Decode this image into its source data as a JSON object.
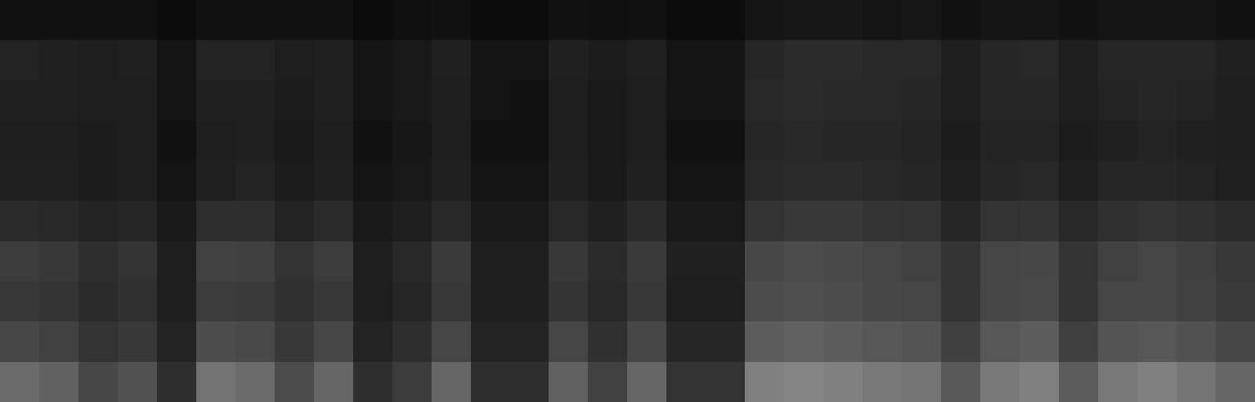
{
  "chart_data": {
    "type": "heatmap",
    "tick_labels": false,
    "value_range": [
      0,
      1
    ],
    "cells": [
      [
        0.07,
        0.07,
        0.07,
        0.07,
        0.05,
        0.07,
        0.07,
        0.07,
        0.07,
        0.05,
        0.06,
        0.07,
        0.05,
        0.05,
        0.07,
        0.06,
        0.07,
        0.05,
        0.05,
        0.08,
        0.09,
        0.09,
        0.08,
        0.09,
        0.07,
        0.08,
        0.08,
        0.07,
        0.08,
        0.08,
        0.08,
        0.07
      ],
      [
        0.14,
        0.13,
        0.12,
        0.13,
        0.08,
        0.14,
        0.14,
        0.12,
        0.13,
        0.08,
        0.1,
        0.13,
        0.08,
        0.08,
        0.13,
        0.11,
        0.13,
        0.08,
        0.08,
        0.15,
        0.17,
        0.17,
        0.16,
        0.16,
        0.12,
        0.15,
        0.16,
        0.12,
        0.15,
        0.15,
        0.15,
        0.13
      ],
      [
        0.13,
        0.13,
        0.12,
        0.12,
        0.08,
        0.13,
        0.13,
        0.11,
        0.13,
        0.08,
        0.1,
        0.12,
        0.08,
        0.07,
        0.12,
        0.1,
        0.12,
        0.08,
        0.08,
        0.16,
        0.17,
        0.16,
        0.16,
        0.15,
        0.12,
        0.15,
        0.15,
        0.12,
        0.14,
        0.15,
        0.14,
        0.12
      ],
      [
        0.12,
        0.12,
        0.11,
        0.12,
        0.07,
        0.12,
        0.13,
        0.1,
        0.12,
        0.07,
        0.09,
        0.12,
        0.07,
        0.07,
        0.12,
        0.1,
        0.12,
        0.07,
        0.07,
        0.15,
        0.16,
        0.15,
        0.15,
        0.14,
        0.11,
        0.14,
        0.14,
        0.11,
        0.13,
        0.14,
        0.13,
        0.12
      ],
      [
        0.13,
        0.13,
        0.11,
        0.12,
        0.08,
        0.13,
        0.14,
        0.11,
        0.13,
        0.08,
        0.1,
        0.13,
        0.08,
        0.08,
        0.13,
        0.1,
        0.13,
        0.08,
        0.08,
        0.16,
        0.17,
        0.17,
        0.16,
        0.15,
        0.12,
        0.15,
        0.16,
        0.12,
        0.15,
        0.15,
        0.14,
        0.13
      ],
      [
        0.17,
        0.16,
        0.14,
        0.15,
        0.1,
        0.18,
        0.18,
        0.14,
        0.17,
        0.1,
        0.12,
        0.16,
        0.1,
        0.1,
        0.16,
        0.13,
        0.17,
        0.1,
        0.1,
        0.2,
        0.22,
        0.22,
        0.21,
        0.2,
        0.15,
        0.2,
        0.21,
        0.16,
        0.19,
        0.2,
        0.19,
        0.17
      ],
      [
        0.24,
        0.22,
        0.18,
        0.2,
        0.12,
        0.26,
        0.25,
        0.2,
        0.24,
        0.12,
        0.16,
        0.23,
        0.12,
        0.12,
        0.22,
        0.17,
        0.23,
        0.13,
        0.13,
        0.28,
        0.3,
        0.29,
        0.27,
        0.26,
        0.2,
        0.27,
        0.28,
        0.2,
        0.26,
        0.27,
        0.25,
        0.22
      ],
      [
        0.22,
        0.21,
        0.17,
        0.19,
        0.12,
        0.24,
        0.23,
        0.19,
        0.22,
        0.12,
        0.15,
        0.22,
        0.12,
        0.12,
        0.21,
        0.16,
        0.22,
        0.12,
        0.12,
        0.3,
        0.31,
        0.3,
        0.28,
        0.27,
        0.21,
        0.28,
        0.29,
        0.21,
        0.27,
        0.28,
        0.26,
        0.23
      ],
      [
        0.28,
        0.26,
        0.2,
        0.22,
        0.14,
        0.3,
        0.29,
        0.22,
        0.28,
        0.14,
        0.18,
        0.27,
        0.14,
        0.14,
        0.27,
        0.19,
        0.28,
        0.15,
        0.15,
        0.36,
        0.38,
        0.36,
        0.34,
        0.33,
        0.25,
        0.34,
        0.36,
        0.25,
        0.33,
        0.34,
        0.32,
        0.28
      ],
      [
        0.42,
        0.38,
        0.28,
        0.32,
        0.18,
        0.45,
        0.42,
        0.3,
        0.4,
        0.18,
        0.24,
        0.4,
        0.18,
        0.18,
        0.38,
        0.26,
        0.4,
        0.2,
        0.2,
        0.5,
        0.52,
        0.5,
        0.48,
        0.46,
        0.35,
        0.48,
        0.5,
        0.36,
        0.47,
        0.5,
        0.46,
        0.4
      ]
    ]
  }
}
